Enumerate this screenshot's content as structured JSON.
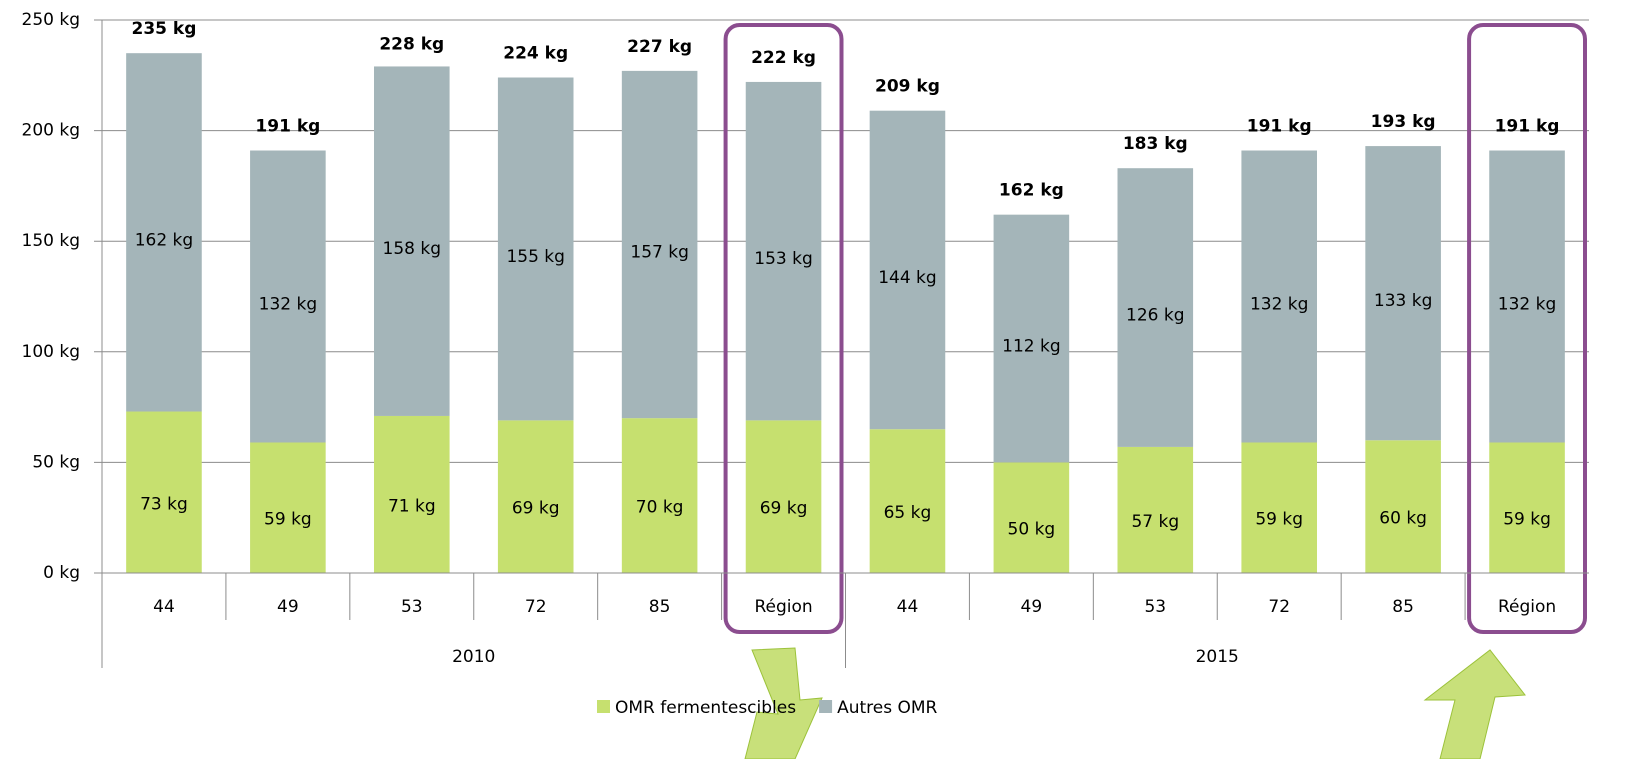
{
  "chart_data": {
    "type": "stacked_bar",
    "categories": [
      "44",
      "49",
      "53",
      "72",
      "85",
      "Région",
      "44",
      "49",
      "53",
      "72",
      "85",
      "Région"
    ],
    "groups": [
      "2010",
      "2015"
    ],
    "series": [
      {
        "name": "OMR fermentescibles",
        "color": "#c6e06f",
        "values": [
          73,
          59,
          71,
          69,
          70,
          69,
          65,
          50,
          57,
          59,
          60,
          59
        ],
        "value_labels": [
          "73 kg",
          "59 kg",
          "71 kg",
          "69 kg",
          "70 kg",
          "69 kg",
          "65 kg",
          "50 kg",
          "57 kg",
          "59 kg",
          "60 kg",
          "59 kg"
        ]
      },
      {
        "name": "Autres OMR",
        "color": "#a4b5b9",
        "values": [
          162,
          132,
          158,
          155,
          157,
          153,
          144,
          112,
          126,
          132,
          133,
          132
        ],
        "value_labels": [
          "162 kg",
          "132 kg",
          "158 kg",
          "155 kg",
          "157 kg",
          "153 kg",
          "144 kg",
          "112 kg",
          "126 kg",
          "132 kg",
          "133 kg",
          "132 kg"
        ]
      }
    ],
    "totals": [
      235,
      191,
      228,
      224,
      227,
      222,
      209,
      162,
      183,
      191,
      193,
      191
    ],
    "total_labels": [
      "235 kg",
      "191 kg",
      "228 kg",
      "224 kg",
      "227 kg",
      "222 kg",
      "209 kg",
      "162 kg",
      "183 kg",
      "191 kg",
      "193 kg",
      "191 kg"
    ],
    "ylim": [
      0,
      250
    ],
    "yticks": [
      {
        "value": 0,
        "label": "0 kg"
      },
      {
        "value": 50,
        "label": "50 kg"
      },
      {
        "value": 100,
        "label": "100 kg"
      },
      {
        "value": 150,
        "label": "150 kg"
      },
      {
        "value": 200,
        "label": "200 kg"
      },
      {
        "value": 250,
        "label": "250 kg"
      }
    ],
    "grid": true,
    "legend": "bottom"
  }
}
